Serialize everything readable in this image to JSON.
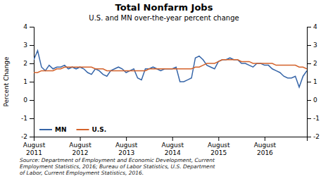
{
  "chart_data": {
    "type": "line",
    "title": "Total Nonfarm Jobs",
    "subtitle": "U.S. and MN over-the-year percent change",
    "source": "Source: Department of Employment and Economic Development, Current\nEmployment Statistics, 2016; Bureau of Labor Statistics, U.S. Department\nof Labor, Current Employment Statistics, 2016.",
    "ylabel": "Percent Change",
    "categories": [
      "August\n2011",
      null,
      null,
      null,
      null,
      null,
      null,
      null,
      null,
      null,
      null,
      null,
      "August\n2012",
      null,
      null,
      null,
      null,
      null,
      null,
      null,
      null,
      null,
      null,
      null,
      "August\n2013",
      null,
      null,
      null,
      null,
      null,
      null,
      null,
      null,
      null,
      null,
      null,
      "August\n2014",
      null,
      null,
      null,
      null,
      null,
      null,
      null,
      null,
      null,
      null,
      null,
      "August\n2015",
      null,
      null,
      null,
      null,
      null,
      null,
      null,
      null,
      null,
      null,
      null,
      "August\n2016",
      null,
      null,
      null,
      null,
      null,
      null,
      null,
      null,
      null,
      null,
      null
    ],
    "series": [
      {
        "name": "MN",
        "color": "#3665a8",
        "values": [
          2.2,
          2.7,
          1.8,
          1.6,
          1.9,
          1.7,
          1.8,
          1.8,
          1.9,
          1.7,
          1.8,
          1.7,
          1.8,
          1.7,
          1.5,
          1.4,
          1.7,
          1.6,
          1.4,
          1.3,
          1.6,
          1.7,
          1.8,
          1.7,
          1.5,
          1.6,
          1.7,
          1.2,
          1.1,
          1.7,
          1.7,
          1.8,
          1.7,
          1.6,
          1.7,
          1.7,
          1.7,
          1.8,
          1.0,
          1.0,
          1.1,
          1.2,
          2.3,
          2.4,
          2.2,
          1.9,
          1.8,
          1.7,
          2.1,
          2.2,
          2.2,
          2.3,
          2.2,
          2.2,
          2.0,
          2.0,
          1.9,
          1.8,
          2.0,
          2.0,
          1.9,
          1.9,
          1.7,
          1.6,
          1.5,
          1.3,
          1.2,
          1.2,
          1.3,
          0.7,
          1.3,
          1.6
        ]
      },
      {
        "name": "U.S.",
        "color": "#d4622a",
        "values": [
          1.5,
          1.5,
          1.6,
          1.6,
          1.6,
          1.6,
          1.7,
          1.7,
          1.8,
          1.8,
          1.8,
          1.8,
          1.8,
          1.8,
          1.8,
          1.8,
          1.7,
          1.7,
          1.7,
          1.6,
          1.6,
          1.6,
          1.6,
          1.6,
          1.6,
          1.6,
          1.6,
          1.6,
          1.6,
          1.6,
          1.7,
          1.7,
          1.7,
          1.7,
          1.7,
          1.7,
          1.7,
          1.7,
          1.7,
          1.7,
          1.7,
          1.7,
          1.8,
          1.8,
          1.9,
          2.0,
          2.0,
          2.0,
          2.1,
          2.2,
          2.2,
          2.2,
          2.2,
          2.2,
          2.1,
          2.1,
          2.1,
          2.0,
          2.0,
          2.0,
          2.0,
          2.0,
          2.0,
          1.9,
          1.9,
          1.9,
          1.9,
          1.9,
          1.9,
          1.8,
          1.8,
          1.7
        ]
      }
    ],
    "ylim": [
      -2,
      4
    ],
    "yticks": [
      -2,
      -1,
      0,
      1,
      2,
      3,
      4
    ],
    "grid": false,
    "legend": "lower left"
  }
}
